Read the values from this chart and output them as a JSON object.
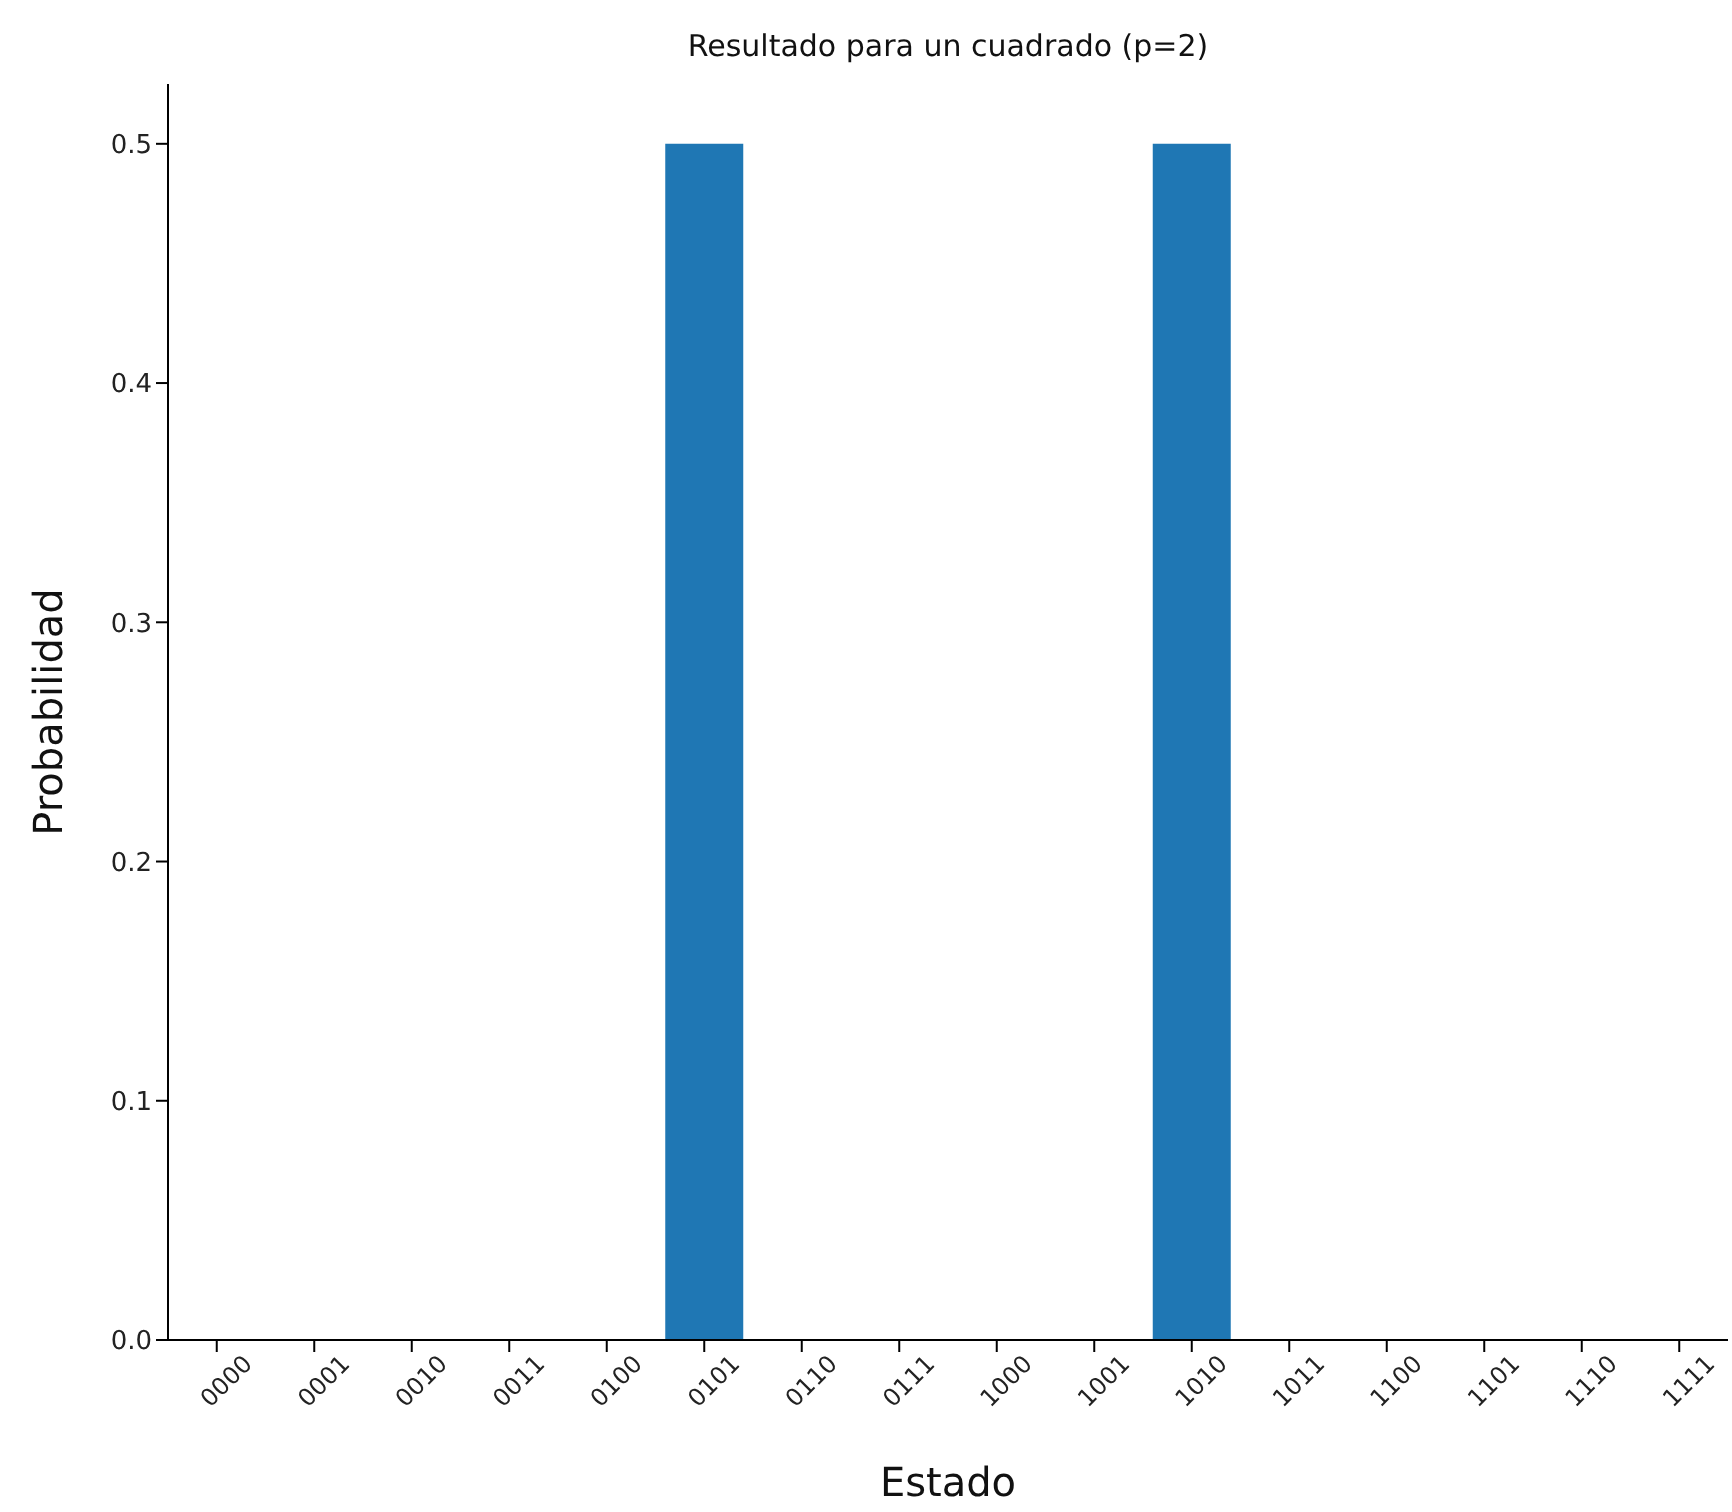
{
  "chart_data": {
    "type": "bar",
    "title": "Resultado para un cuadrado (p=2)",
    "xlabel": "Estado",
    "ylabel": "Probabilidad",
    "categories": [
      "0000",
      "0001",
      "0010",
      "0011",
      "0100",
      "0101",
      "0110",
      "0111",
      "1000",
      "1001",
      "1010",
      "1011",
      "1100",
      "1101",
      "1110",
      "1111"
    ],
    "values": [
      0,
      0,
      0,
      0,
      0,
      0.5,
      0,
      0,
      0,
      0,
      0.5,
      0,
      0,
      0,
      0,
      0
    ],
    "color": "#1f77b4",
    "ylim": [
      0,
      0.525
    ],
    "yticks": [
      {
        "value": 0,
        "label": "0.0"
      },
      {
        "value": 0.1,
        "label": "0.1"
      },
      {
        "value": 0.2,
        "label": "0.2"
      },
      {
        "value": 0.3,
        "label": "0.3"
      },
      {
        "value": 0.4,
        "label": "0.4"
      },
      {
        "value": 0.5,
        "label": "0.5"
      }
    ],
    "grid": false,
    "legend": false
  }
}
